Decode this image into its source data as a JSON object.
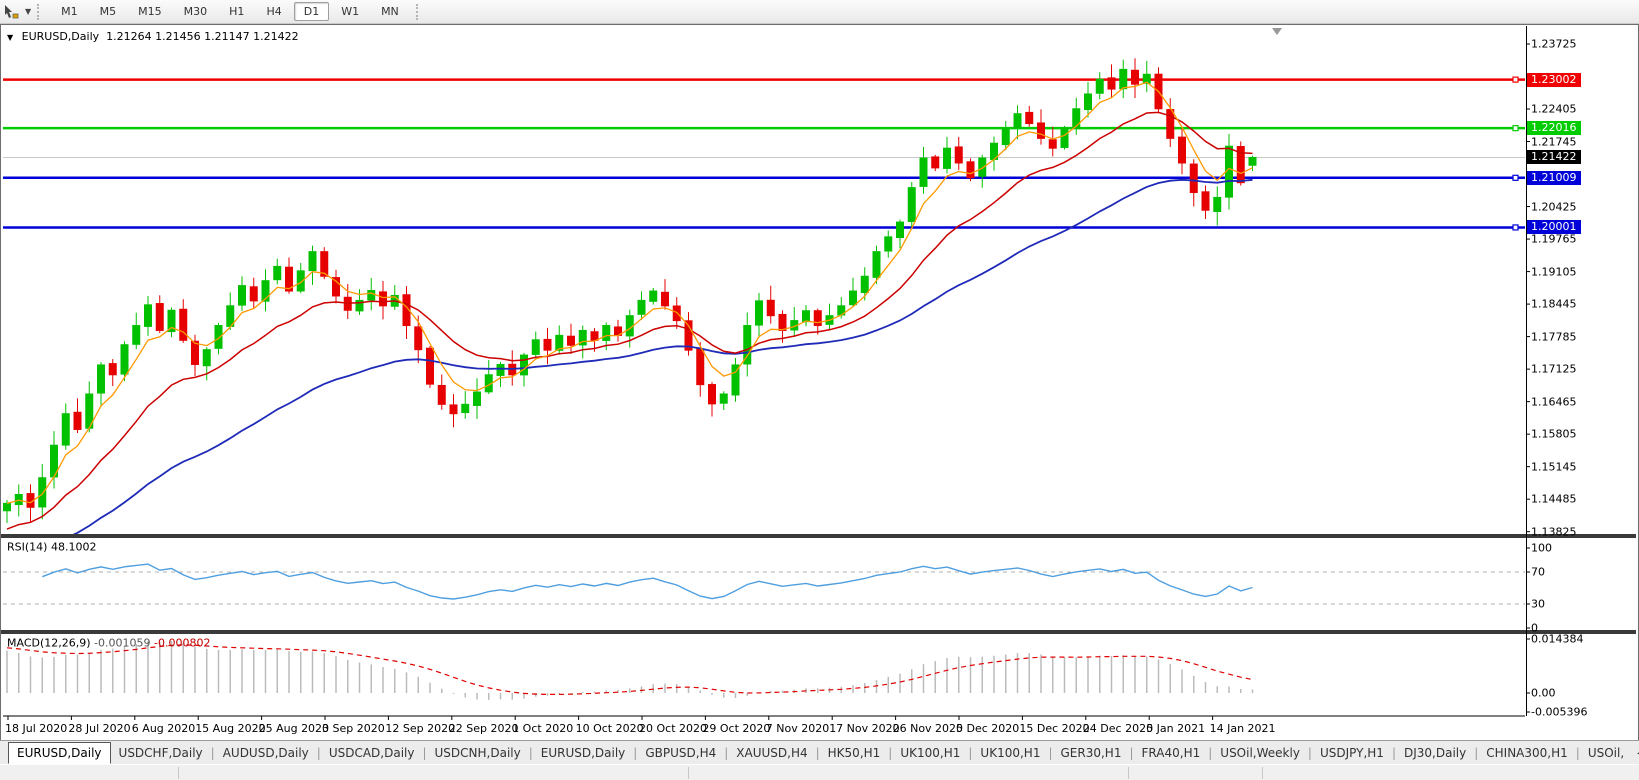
{
  "toolbar": {
    "tool_icon": "crosshair-cursor-tool",
    "timeframes": [
      "M1",
      "M5",
      "M15",
      "M30",
      "H1",
      "H4",
      "D1",
      "W1",
      "MN"
    ],
    "active_timeframe": "D1"
  },
  "title": {
    "symbol": "EURUSD,Daily",
    "open": "1.21264",
    "high": "1.21456",
    "low": "1.21147",
    "close": "1.21422"
  },
  "price_axis": {
    "ticks": [
      "1.23725",
      "1.22405",
      "1.21745",
      "1.20425",
      "1.19765",
      "1.19105",
      "1.18445",
      "1.17785",
      "1.17125",
      "1.16465",
      "1.15805",
      "1.15145",
      "1.14485",
      "1.13825"
    ]
  },
  "levels": [
    {
      "label": "1.23002",
      "value": 1.23002,
      "color": "#f00000",
      "name": "resistance-line-1.23002"
    },
    {
      "label": "1.22016",
      "value": 1.22016,
      "color": "#00cc00",
      "name": "support-line-1.22016"
    },
    {
      "label": "1.21009",
      "value": 1.21009,
      "color": "#0000d8",
      "name": "support-line-1.21009"
    },
    {
      "label": "1.20001",
      "value": 1.20001,
      "color": "#0000d8",
      "name": "support-line-1.20001"
    }
  ],
  "current_price": {
    "label": "1.21422",
    "value": 1.21422,
    "label_bg": "#000000",
    "line_color": "#c8c8c8"
  },
  "date_axis": [
    "18 Jul 2020",
    "28 Jul 2020",
    "6 Aug 2020",
    "15 Aug 2020",
    "25 Aug 2020",
    "3 Sep 2020",
    "12 Sep 2020",
    "22 Sep 2020",
    "1 Oct 2020",
    "10 Oct 2020",
    "20 Oct 2020",
    "29 Oct 2020",
    "7 Nov 2020",
    "17 Nov 2020",
    "26 Nov 2020",
    "5 Dec 2020",
    "15 Dec 2020",
    "24 Dec 2020",
    "5 Jan 2021",
    "14 Jan 2021"
  ],
  "rsi_panel": {
    "label": "RSI(14)",
    "value": "48.1002",
    "axis": [
      "100",
      "70",
      "30",
      "0"
    ],
    "levels_dashed": [
      70,
      30
    ],
    "line_color": "#4f9fe0"
  },
  "macd_panel": {
    "label": "MACD(12,26,9)",
    "main_value": "-0.001059",
    "signal_value": "-0.000802",
    "axis_top": "0.014384",
    "axis_zero": "0.00",
    "axis_bottom": "-0.005396",
    "histogram_color": "#bbbbbb",
    "signal_color": "#e00000"
  },
  "tabs": {
    "items": [
      "EURUSD,Daily",
      "USDCHF,Daily",
      "AUDUSD,Daily",
      "USDCAD,Daily",
      "USDCNH,Daily",
      "EURUSD,Daily",
      "GBPUSD,H4",
      "XAUUSD,H4",
      "HK50,H1",
      "UK100,H1",
      "UK100,H1",
      "GER30,H1",
      "FRA40,H1",
      "USOil,Weekly",
      "USDJPY,H1",
      "DJ30,Daily",
      "CHINA300,H1",
      "USOil,"
    ],
    "active_index": 0,
    "scroll_left": "◂",
    "scroll_right": "▸"
  },
  "chart_data": {
    "type": "candlestick",
    "symbol": "EURUSD",
    "timeframe": "Daily",
    "x_labels": [
      "18 Jul 2020",
      "28 Jul 2020",
      "6 Aug 2020",
      "15 Aug 2020",
      "25 Aug 2020",
      "3 Sep 2020",
      "12 Sep 2020",
      "22 Sep 2020",
      "1 Oct 2020",
      "10 Oct 2020",
      "20 Oct 2020",
      "29 Oct 2020",
      "7 Nov 2020",
      "17 Nov 2020",
      "26 Nov 2020",
      "5 Dec 2020",
      "15 Dec 2020",
      "24 Dec 2020",
      "5 Jan 2021",
      "14 Jan 2021"
    ],
    "y_range": [
      1.13766,
      1.2409
    ],
    "first_open": 1.1425,
    "closes": [
      1.144,
      1.1458,
      1.1432,
      1.1492,
      1.1558,
      1.1622,
      1.159,
      1.1662,
      1.1721,
      1.1701,
      1.1762,
      1.1801,
      1.1843,
      1.1791,
      1.1832,
      1.1771,
      1.1722,
      1.1752,
      1.1801,
      1.1841,
      1.1882,
      1.1851,
      1.1892,
      1.1921,
      1.1871,
      1.1912,
      1.1951,
      1.1901,
      1.1861,
      1.1832,
      1.1852,
      1.1872,
      1.1841,
      1.1862,
      1.1801,
      1.1752,
      1.1682,
      1.1641,
      1.1622,
      1.1641,
      1.1666,
      1.1701,
      1.1722,
      1.1701,
      1.1741,
      1.1772,
      1.1751,
      1.1781,
      1.1761,
      1.1791,
      1.1771,
      1.1801,
      1.1781,
      1.1821,
      1.1852,
      1.1871,
      1.1841,
      1.1811,
      1.1751,
      1.1681,
      1.1642,
      1.1662,
      1.1721,
      1.1801,
      1.1851,
      1.1821,
      1.1791,
      1.1811,
      1.1831,
      1.1801,
      1.1821,
      1.1841,
      1.1871,
      1.1901,
      1.1951,
      1.1981,
      1.2011,
      1.2081,
      1.2141,
      1.2121,
      1.2161,
      1.2131,
      1.2101,
      1.2141,
      1.2171,
      1.2201,
      1.2231,
      1.2211,
      1.2181,
      1.2161,
      1.2201,
      1.2241,
      1.2271,
      1.2301,
      1.2281,
      1.2321,
      1.2291,
      1.2311,
      1.2241,
      1.2181,
      1.2131,
      1.2071,
      1.2035,
      1.2061,
      1.2165,
      1.2091,
      1.21422
    ],
    "last_bar_ohlc": [
      1.21264,
      1.21456,
      1.21147,
      1.21422
    ],
    "bull_color": "#00c000",
    "bear_color": "#e60000",
    "ma_fast_color": "#ff9900",
    "ma_mid_color": "#cc0000",
    "ma_slow_color": "#1f2bb8",
    "horizontal_levels": [
      1.23002,
      1.22016,
      1.21009,
      1.20001
    ],
    "grid": false,
    "legend": false
  }
}
